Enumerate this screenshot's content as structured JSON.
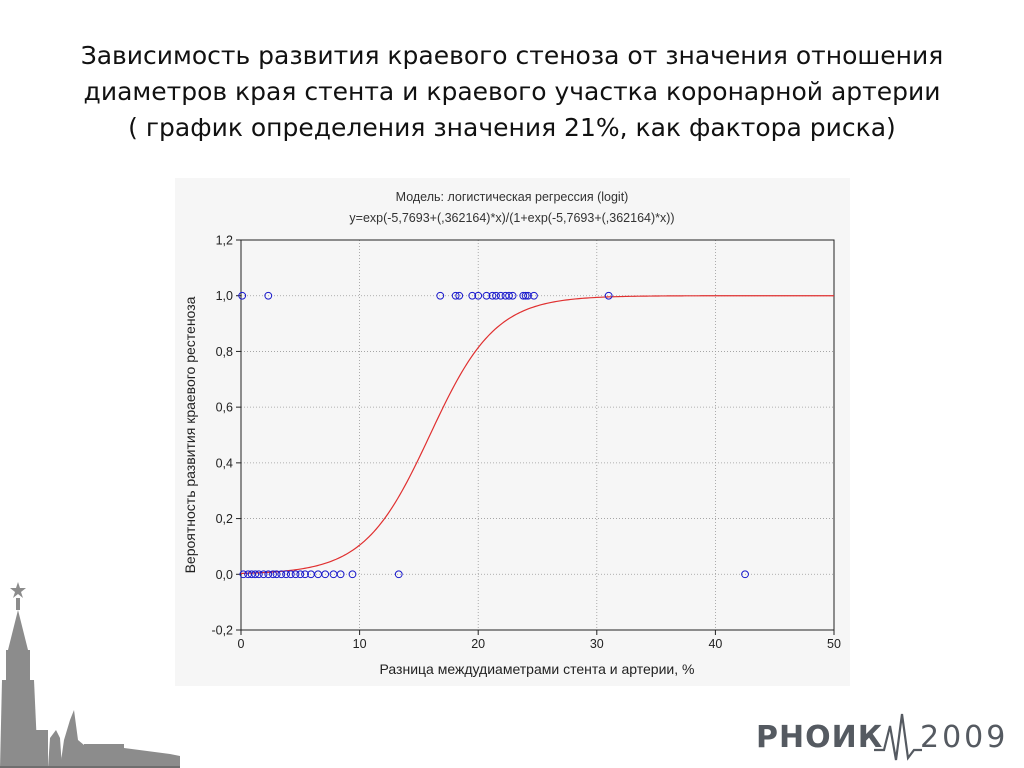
{
  "slide": {
    "title_lines": [
      "Зависимость развития краевого стеноза от значения отношения",
      "диаметров края стента и краевого участка коронарной артерии",
      "( график определения значения 21%, как фактора риска)"
    ]
  },
  "logo": {
    "name": "РНОИК",
    "year": "2009"
  },
  "colors": {
    "curve": "#e03030",
    "points": "#1a1acc",
    "grid": "#9a9a9a",
    "panel": "#f6f6f6"
  },
  "chart_data": {
    "type": "scatter",
    "title": "Модель: логистическая регрессия (logit)",
    "subtitle": "y=exp(-5,7693+(,362164)*x)/(1+exp(-5,7693+(,362164)*x))",
    "xlabel": "Разница междудиаметрами стента и артерии, %",
    "ylabel": "Вероятность развития краевого рестеноза",
    "xlim": [
      0,
      50
    ],
    "ylim": [
      -0.2,
      1.2
    ],
    "xticks": [
      0,
      10,
      20,
      30,
      40,
      50
    ],
    "xtick_labels": [
      "0",
      "10",
      "20",
      "30",
      "40",
      "50"
    ],
    "yticks": [
      -0.2,
      0,
      0.2,
      0.4,
      0.6,
      0.8,
      1.0,
      1.2
    ],
    "ytick_labels": [
      "-0,2",
      "0,0",
      "0,2",
      "0,4",
      "0,6",
      "0,8",
      "1,0",
      "1,2"
    ],
    "grid": true,
    "model": {
      "intercept": -5.7693,
      "slope": 0.362164
    },
    "points": [
      [
        0.1,
        1
      ],
      [
        2.3,
        1
      ],
      [
        16.8,
        1
      ],
      [
        18.1,
        1
      ],
      [
        18.4,
        1
      ],
      [
        19.5,
        1
      ],
      [
        20.0,
        1
      ],
      [
        20.7,
        1
      ],
      [
        21.2,
        1
      ],
      [
        21.5,
        1
      ],
      [
        21.9,
        1
      ],
      [
        22.3,
        1
      ],
      [
        22.6,
        1
      ],
      [
        22.9,
        1
      ],
      [
        23.8,
        1
      ],
      [
        24.0,
        1
      ],
      [
        24.2,
        1
      ],
      [
        24.7,
        1
      ],
      [
        31.0,
        1
      ],
      [
        0.2,
        0
      ],
      [
        0.6,
        0
      ],
      [
        0.9,
        0
      ],
      [
        1.2,
        0
      ],
      [
        1.5,
        0
      ],
      [
        1.9,
        0
      ],
      [
        2.3,
        0
      ],
      [
        2.7,
        0
      ],
      [
        3.0,
        0
      ],
      [
        3.4,
        0
      ],
      [
        3.8,
        0
      ],
      [
        4.2,
        0
      ],
      [
        4.6,
        0
      ],
      [
        5.0,
        0
      ],
      [
        5.4,
        0
      ],
      [
        5.9,
        0
      ],
      [
        6.5,
        0
      ],
      [
        7.1,
        0
      ],
      [
        7.8,
        0
      ],
      [
        8.4,
        0
      ],
      [
        9.4,
        0
      ],
      [
        13.3,
        0
      ],
      [
        42.5,
        0
      ]
    ]
  }
}
